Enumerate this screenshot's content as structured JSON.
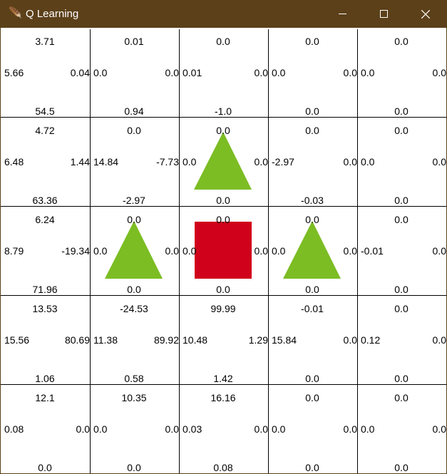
{
  "window": {
    "title": "Q Learning",
    "icon": "feather-icon"
  },
  "colors": {
    "titlebar": "#5c4019",
    "obstacle": "#7cbd23",
    "goal": "#d0011b",
    "grid": "#000000"
  },
  "grid": {
    "rows": [
      [
        {
          "up": "3.71",
          "left": "5.66",
          "right": "0.04",
          "down": "54.5"
        },
        {
          "up": "0.01",
          "left": "0.0",
          "right": "0.0",
          "down": "0.94"
        },
        {
          "up": "0.0",
          "left": "0.01",
          "right": "0.0",
          "down": "-1.0"
        },
        {
          "up": "0.0",
          "left": "0.0",
          "right": "0.0",
          "down": "0.0"
        },
        {
          "up": "0.0",
          "left": "0.0",
          "right": "0.0",
          "down": "0.0"
        }
      ],
      [
        {
          "up": "4.72",
          "left": "6.48",
          "right": "1.44",
          "down": "63.36"
        },
        {
          "up": "0.0",
          "left": "14.84",
          "right": "-7.73",
          "down": "-2.97"
        },
        {
          "up": "0.0",
          "left": "0.0",
          "right": "0.0",
          "down": "0.0",
          "obstacle": true
        },
        {
          "up": "0.0",
          "left": "-2.97",
          "right": "0.0",
          "down": "-0.03"
        },
        {
          "up": "0.0",
          "left": "0.0",
          "right": "0.0",
          "down": "0.0"
        }
      ],
      [
        {
          "up": "6.24",
          "left": "8.79",
          "right": "-19.34",
          "down": "71.96"
        },
        {
          "up": "0.0",
          "left": "0.0",
          "right": "0.0",
          "down": "0.0",
          "obstacle": true
        },
        {
          "up": "0.0",
          "left": "0.0",
          "right": "0.0",
          "down": "0.0",
          "goal": true
        },
        {
          "up": "0.0",
          "left": "0.0",
          "right": "0.0",
          "down": "0.0",
          "obstacle": true
        },
        {
          "up": "0.0",
          "left": "-0.01",
          "right": "0.0",
          "down": "0.0"
        }
      ],
      [
        {
          "up": "13.53",
          "left": "15.56",
          "right": "80.69",
          "down": "1.06"
        },
        {
          "up": "-24.53",
          "left": "11.38",
          "right": "89.92",
          "down": "0.58"
        },
        {
          "up": "99.99",
          "left": "10.48",
          "right": "1.29",
          "down": "1.42"
        },
        {
          "up": "-0.01",
          "left": "15.84",
          "right": "0.0",
          "down": "0.0"
        },
        {
          "up": "0.0",
          "left": "0.12",
          "right": "0.0",
          "down": "0.0"
        }
      ],
      [
        {
          "up": "12.1",
          "left": "0.08",
          "right": "0.0",
          "down": "0.0"
        },
        {
          "up": "10.35",
          "left": "0.0",
          "right": "0.0",
          "down": "0.0"
        },
        {
          "up": "16.16",
          "left": "0.03",
          "right": "0.0",
          "down": "0.08"
        },
        {
          "up": "0.0",
          "left": "0.0",
          "right": "0.0",
          "down": "0.0"
        },
        {
          "up": "0.0",
          "left": "0.0",
          "right": "0.0",
          "down": "0.0"
        }
      ]
    ]
  }
}
